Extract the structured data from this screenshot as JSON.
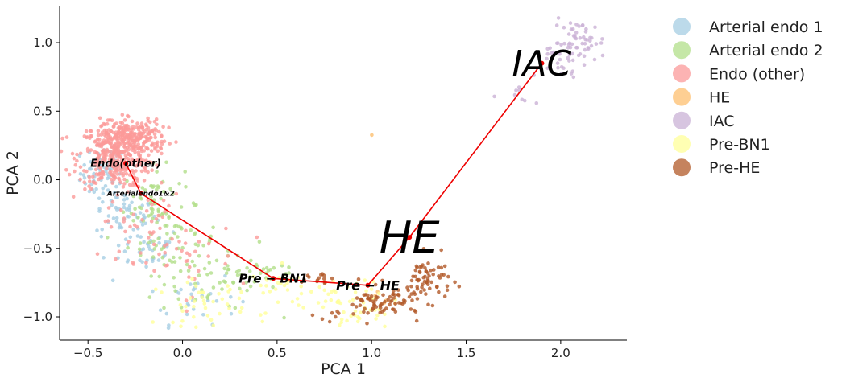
{
  "chart_data": {
    "type": "scatter",
    "xlabel": "PCA 1",
    "ylabel": "PCA 2",
    "xlim": [
      -0.65,
      2.35
    ],
    "ylim": [
      -1.17,
      1.27
    ],
    "x_ticks": [
      -0.5,
      0.0,
      0.5,
      1.0,
      1.5,
      2.0
    ],
    "x_tick_labels": [
      "−0.5",
      "0.0",
      "0.5",
      "1.0",
      "1.5",
      "2.0"
    ],
    "y_ticks": [
      -1.0,
      -0.5,
      0.0,
      0.5,
      1.0
    ],
    "y_tick_labels": [
      "−1.0",
      "−0.5",
      "0.0",
      "0.5",
      "1.0"
    ],
    "grid": false,
    "legend_position": "outside-right",
    "series": [
      {
        "name": "Arterial endo 1",
        "color": "#a6cee3",
        "clusters": [
          [
            -0.42,
            0.05,
            0.06,
            0.1,
            70
          ],
          [
            -0.3,
            -0.25,
            0.08,
            0.08,
            50
          ],
          [
            -0.2,
            -0.5,
            0.1,
            0.08,
            40
          ],
          [
            0.05,
            -0.85,
            0.12,
            0.1,
            30
          ]
        ]
      },
      {
        "name": "Arterial endo 2",
        "color": "#b2df8a",
        "clusters": [
          [
            -0.15,
            -0.15,
            0.08,
            0.12,
            50
          ],
          [
            -0.05,
            -0.45,
            0.12,
            0.12,
            60
          ],
          [
            0.2,
            -0.75,
            0.15,
            0.1,
            50
          ],
          [
            0.45,
            -0.65,
            0.1,
            0.06,
            20
          ]
        ]
      },
      {
        "name": "Endo (other)",
        "color": "#fb9a99",
        "clusters": [
          [
            -0.35,
            0.18,
            0.1,
            0.12,
            400
          ],
          [
            -0.25,
            0.32,
            0.08,
            0.06,
            150
          ],
          [
            -0.2,
            -0.35,
            0.1,
            0.12,
            40
          ],
          [
            0.0,
            -0.6,
            0.15,
            0.15,
            30
          ]
        ]
      },
      {
        "name": "HE",
        "color": "#fdbf6f",
        "clusters": [
          [
            1.0,
            0.33,
            0.005,
            0.005,
            1
          ],
          [
            1.05,
            -0.85,
            0.08,
            0.06,
            6
          ]
        ]
      },
      {
        "name": "IAC",
        "color": "#cab2d6",
        "clusters": [
          [
            2.1,
            1.0,
            0.07,
            0.08,
            60
          ],
          [
            2.0,
            0.85,
            0.05,
            0.05,
            15
          ],
          [
            1.8,
            0.6,
            0.04,
            0.05,
            8
          ]
        ]
      },
      {
        "name": "Pre-BN1",
        "color": "#ffff99",
        "clusters": [
          [
            0.1,
            -0.9,
            0.12,
            0.08,
            40
          ],
          [
            0.55,
            -0.8,
            0.1,
            0.08,
            30
          ],
          [
            0.85,
            -0.85,
            0.1,
            0.08,
            30
          ],
          [
            0.95,
            -1.0,
            0.06,
            0.05,
            20
          ]
        ]
      },
      {
        "name": "Pre-HE",
        "color": "#b15928",
        "clusters": [
          [
            1.3,
            -0.72,
            0.06,
            0.08,
            60
          ],
          [
            1.15,
            -0.88,
            0.08,
            0.06,
            40
          ],
          [
            1.0,
            -0.92,
            0.07,
            0.06,
            40
          ],
          [
            0.75,
            -0.72,
            0.08,
            0.03,
            15
          ],
          [
            0.8,
            -0.98,
            0.05,
            0.04,
            8
          ]
        ]
      }
    ],
    "trajectory": {
      "color": "#ee0000",
      "points": [
        [
          -0.3,
          0.12
        ],
        [
          -0.22,
          -0.1
        ],
        [
          0.48,
          -0.72
        ],
        [
          0.98,
          -0.77
        ],
        [
          1.2,
          -0.42
        ],
        [
          1.9,
          0.85
        ]
      ]
    },
    "annotations": [
      {
        "text": "Endo(other)",
        "x": -0.3,
        "y": 0.12,
        "size": 13,
        "bold": true
      },
      {
        "text": "Arterialendo1&2",
        "x": -0.22,
        "y": -0.1,
        "size": 9,
        "bold": true
      },
      {
        "text": "Pre − BN1",
        "x": 0.48,
        "y": -0.72,
        "size": 15,
        "bold": true
      },
      {
        "text": "Pre − HE",
        "x": 0.98,
        "y": -0.77,
        "size": 16,
        "bold": true
      },
      {
        "text": "HE",
        "x": 1.2,
        "y": -0.42,
        "size": 54,
        "bold": false
      },
      {
        "text": "IAC",
        "x": 1.9,
        "y": 0.85,
        "size": 44,
        "bold": false
      }
    ]
  }
}
